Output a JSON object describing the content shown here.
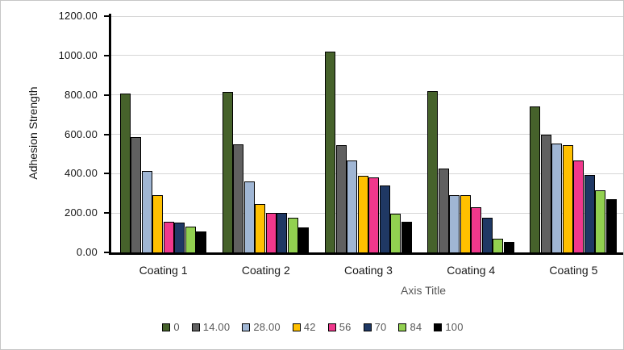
{
  "chart_data": {
    "type": "bar",
    "title": "",
    "ylabel": "Adhesion Strength",
    "xlabel": "Axis Title",
    "categories": [
      "Coating 1",
      "Coating 2",
      "Coating 3",
      "Coating 4",
      "Coating 5"
    ],
    "series": [
      {
        "name": "0",
        "color": "#46622B",
        "values": [
          805,
          815,
          1020,
          820,
          740
        ]
      },
      {
        "name": "14.00",
        "color": "#606060",
        "values": [
          585,
          550,
          545,
          425,
          600
        ]
      },
      {
        "name": "28.00",
        "color": "#A0B6D4",
        "values": [
          415,
          360,
          465,
          290,
          555
        ]
      },
      {
        "name": "42",
        "color": "#FFC000",
        "values": [
          290,
          245,
          390,
          290,
          545
        ]
      },
      {
        "name": "56",
        "color": "#F0388C",
        "values": [
          155,
          200,
          380,
          230,
          465
        ]
      },
      {
        "name": "70",
        "color": "#1F3864",
        "values": [
          150,
          200,
          340,
          175,
          395
        ]
      },
      {
        "name": "84",
        "color": "#92D050",
        "values": [
          130,
          175,
          195,
          70,
          315
        ]
      },
      {
        "name": "100",
        "color": "#000000",
        "values": [
          105,
          125,
          155,
          55,
          270
        ]
      }
    ],
    "ylim": [
      0,
      1200
    ],
    "ytick_step": 200,
    "ytick_labels": [
      "0.00",
      "200.00",
      "400.00",
      "600.00",
      "800.00",
      "1000.00",
      "1200.00"
    ],
    "grid": true,
    "legend_position": "bottom",
    "colors": {
      "gridline": "#d6d6d6",
      "axis": "#000000",
      "tick_label": "#161616",
      "legend_text": "#595959",
      "x_axis_title": "#595959"
    }
  }
}
